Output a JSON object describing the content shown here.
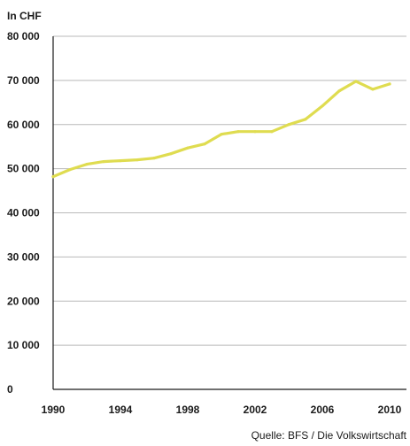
{
  "chart_data": {
    "type": "line",
    "unit_label": "In CHF",
    "source": "Quelle: BFS / Die Volkswirtschaft",
    "ylim": [
      0,
      80000
    ],
    "xlim": [
      1990,
      2011
    ],
    "y_ticks": [
      {
        "value": 0,
        "label": "0"
      },
      {
        "value": 10000,
        "label": "10 000"
      },
      {
        "value": 20000,
        "label": "20 000"
      },
      {
        "value": 30000,
        "label": "30 000"
      },
      {
        "value": 40000,
        "label": "40 000"
      },
      {
        "value": 50000,
        "label": "50 000"
      },
      {
        "value": 60000,
        "label": "60 000"
      },
      {
        "value": 70000,
        "label": "70 000"
      },
      {
        "value": 80000,
        "label": "80 000"
      }
    ],
    "x_ticks": [
      {
        "value": 1990,
        "label": "1990"
      },
      {
        "value": 1994,
        "label": "1994"
      },
      {
        "value": 1998,
        "label": "1998"
      },
      {
        "value": 2002,
        "label": "2002"
      },
      {
        "value": 2006,
        "label": "2006"
      },
      {
        "value": 2010,
        "label": "2010"
      }
    ],
    "grid": "horizontal",
    "line_color": "#dfdc50",
    "grid_color": "#b9b9b9",
    "series": [
      {
        "x": [
          1990,
          1991,
          1992,
          1993,
          1994,
          1995,
          1996,
          1997,
          1998,
          1999,
          2000,
          2001,
          2002,
          2003,
          2004,
          2005,
          2006,
          2007,
          2008,
          2009,
          2010
        ],
        "values": [
          48200,
          49800,
          51000,
          51600,
          51800,
          52000,
          52400,
          53400,
          54700,
          55600,
          57800,
          58400,
          58400,
          58400,
          60000,
          61200,
          64200,
          67600,
          69800,
          68000,
          69200
        ]
      }
    ]
  }
}
